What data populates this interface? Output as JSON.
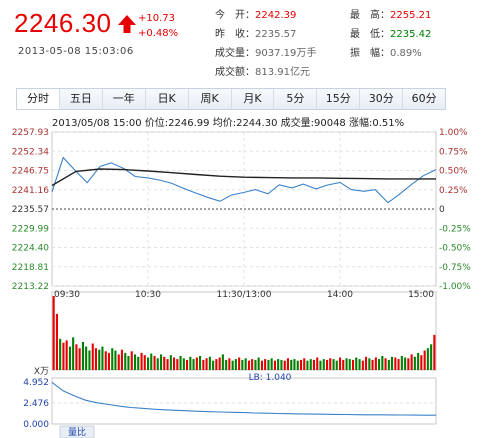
{
  "quote": {
    "price": "2246.30",
    "change": "+10.73",
    "change_pct": "+0.48%",
    "datetime": "2013-05-08 15:03:06",
    "up_color": "#e60000",
    "down_color": "#008000"
  },
  "stats_left": [
    {
      "label": "今　开：",
      "value": "2242.39",
      "tone": "red"
    },
    {
      "label": "昨　收：",
      "value": "2235.57",
      "tone": "plain"
    },
    {
      "label": "成交量：",
      "value": "9037.19万手",
      "tone": "plain"
    },
    {
      "label": "成交额：",
      "value": "813.91亿元",
      "tone": "plain"
    }
  ],
  "stats_right": [
    {
      "label": "最　高：",
      "value": "2255.21",
      "tone": "red"
    },
    {
      "label": "最　低：",
      "value": "2235.42",
      "tone": "grn"
    },
    {
      "label": "振　幅：",
      "value": "0.89%",
      "tone": "plain"
    }
  ],
  "tabs": [
    "分时",
    "五日",
    "一年",
    "日K",
    "周K",
    "月K",
    "5分",
    "15分",
    "30分",
    "60分"
  ],
  "active_tab": 0,
  "cursor_info": "2013/05/08 15:00  价位:2246.99  均价:2244.30  成交量:90048  涨幅:0.51%",
  "chart_data": [
    {
      "type": "line",
      "title": "",
      "xlabel": "",
      "ylabel": "",
      "x_ticks": [
        "09:30",
        "10:30",
        "11:30/13:00",
        "14:00",
        "15:00"
      ],
      "y_ticks_left": [
        "2257.93",
        "2252.34",
        "2246.75",
        "2241.16",
        "2235.57",
        "2229.99",
        "2224.40",
        "2218.81",
        "2213.22"
      ],
      "y_ticks_right": [
        "1.00%",
        "0.75%",
        "0.50%",
        "0.25%",
        "0",
        "-0.25%",
        "-0.50%",
        "-0.75%",
        "-1.00%"
      ],
      "ylim": [
        2213.22,
        2257.93
      ],
      "baseline": 2235.57,
      "grid": true,
      "series": [
        {
          "color": "#3b82c8",
          "x": [
            "09:30",
            "09:37",
            "09:45",
            "09:52",
            "10:00",
            "10:07",
            "10:15",
            "10:22",
            "10:30",
            "10:37",
            "10:45",
            "10:52",
            "11:00",
            "11:07",
            "11:15",
            "11:22",
            "11:30",
            "13:07",
            "13:15",
            "13:22",
            "13:30",
            "13:37",
            "13:45",
            "13:52",
            "14:00",
            "14:07",
            "14:15",
            "14:22",
            "14:30",
            "14:37",
            "14:45",
            "14:52",
            "15:00"
          ],
          "values": [
            2240.5,
            2250.5,
            2246.5,
            2243.2,
            2247.9,
            2249.0,
            2247.3,
            2245.0,
            2244.6,
            2244.0,
            2243.0,
            2241.6,
            2240.2,
            2239.0,
            2237.8,
            2239.6,
            2240.4,
            2241.2,
            2240.0,
            2242.6,
            2241.7,
            2242.8,
            2241.4,
            2242.5,
            2243.3,
            2241.2,
            2240.7,
            2241.2,
            2237.4,
            2239.8,
            2242.8,
            2245.2,
            2247.0
          ]
        },
        {
          "color": "#222222",
          "x": [
            "09:30",
            "09:45",
            "10:00",
            "10:15",
            "10:30",
            "10:45",
            "11:00",
            "11:15",
            "11:30",
            "13:15",
            "13:30",
            "13:45",
            "14:00",
            "14:15",
            "14:30",
            "14:45",
            "15:00"
          ],
          "values": [
            2242.4,
            2246.5,
            2247.2,
            2247.0,
            2246.6,
            2246.1,
            2245.6,
            2245.1,
            2244.8,
            2244.7,
            2244.6,
            2244.6,
            2244.5,
            2244.4,
            2244.3,
            2244.3,
            2244.3
          ]
        }
      ]
    },
    {
      "type": "bar",
      "title": "",
      "legend_label": "LB: 1.040",
      "up_color": "#e60000",
      "down_color": "#008000",
      "values": [
        95,
        72,
        40,
        35,
        38,
        30,
        42,
        33,
        28,
        36,
        30,
        25,
        34,
        28,
        26,
        30,
        24,
        22,
        28,
        25,
        20,
        26,
        22,
        18,
        24,
        20,
        17,
        22,
        19,
        16,
        21,
        18,
        15,
        20,
        17,
        14,
        19,
        16,
        14,
        18,
        15,
        13,
        17,
        14,
        16,
        18,
        13,
        15,
        17,
        12,
        14,
        16,
        20,
        13,
        15,
        12,
        14,
        16,
        13,
        15,
        12,
        14,
        13,
        16,
        12,
        14,
        13,
        15,
        12,
        14,
        13,
        12,
        15,
        13,
        14,
        12,
        13,
        15,
        12,
        14,
        13,
        16,
        12,
        14,
        13,
        15,
        14,
        12,
        16,
        13,
        15,
        14,
        13,
        16,
        14,
        12,
        17,
        15,
        13,
        16,
        14,
        18,
        15,
        13,
        17,
        16,
        14,
        18,
        16,
        15,
        20,
        17,
        22,
        19,
        25,
        28,
        33,
        45
      ],
      "directions": "uuduudduuddduudduudduuddudduuddudduuduudduddu duudduudduddudduudduuddudduuddduudduudduudduuddudduuduuddudduudduudduudduuddduuduu"
    },
    {
      "type": "line",
      "title": "",
      "label": "量比",
      "x_label": "X万",
      "y_ticks": [
        "4.952",
        "2.476",
        "0.000"
      ],
      "ylim": [
        0,
        4.952
      ],
      "color": "#3b82c8",
      "values": [
        4.9,
        3.9,
        3.3,
        2.8,
        2.5,
        2.3,
        2.1,
        1.95,
        1.85,
        1.75,
        1.68,
        1.62,
        1.56,
        1.5,
        1.45,
        1.42,
        1.38,
        1.35,
        1.3,
        1.27,
        1.24,
        1.21,
        1.19,
        1.17,
        1.15,
        1.13,
        1.12,
        1.1,
        1.09,
        1.08,
        1.07,
        1.06,
        1.05,
        1.04,
        1.04
      ]
    }
  ]
}
